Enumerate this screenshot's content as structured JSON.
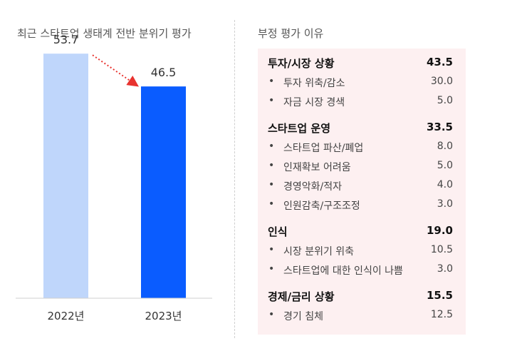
{
  "left_title": "최근 스타트업 생태계 전반 분위기 평가",
  "right_title": "부정 평가 이유",
  "chart_data": {
    "type": "bar",
    "categories": [
      "2022년",
      "2023년"
    ],
    "values": [
      53.7,
      46.5
    ],
    "value_labels": [
      "53.7",
      "46.5"
    ],
    "ylim": [
      0,
      60
    ],
    "grid": false,
    "colors": [
      "#bfd6fb",
      "#0a5cff"
    ],
    "trend_arrow_color": "#e8332f"
  },
  "reasons": [
    {
      "label": "투자/시장 상황",
      "value": "43.5",
      "items": [
        {
          "label": "투자 위축/감소",
          "value": "30.0"
        },
        {
          "label": "자금 시장 경색",
          "value": "5.0"
        }
      ]
    },
    {
      "label": "스타트업 운영",
      "value": "33.5",
      "items": [
        {
          "label": "스타트업 파산/폐업",
          "value": "8.0"
        },
        {
          "label": "인재확보 어려움",
          "value": "5.0"
        },
        {
          "label": "경영악화/적자",
          "value": "4.0"
        },
        {
          "label": "인원감축/구조조정",
          "value": "3.0"
        }
      ]
    },
    {
      "label": "인식",
      "value": "19.0",
      "items": [
        {
          "label": "시장 분위기 위축",
          "value": "10.5"
        },
        {
          "label": "스타트업에 대한 인식이 나쁨",
          "value": "3.0"
        }
      ]
    },
    {
      "label": "경제/금리 상황",
      "value": "15.5",
      "items": [
        {
          "label": "경기 침체",
          "value": "12.5"
        }
      ]
    }
  ]
}
